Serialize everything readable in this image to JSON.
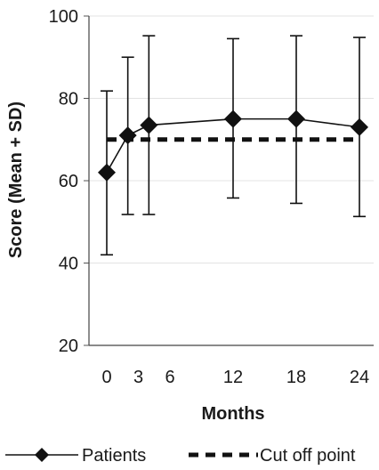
{
  "chart_data": {
    "type": "line",
    "xlabel": "Months",
    "ylabel": "Score (Mean + SD)",
    "x_ticks": [
      "0",
      "3",
      "6",
      "12",
      "18",
      "24"
    ],
    "x_values": [
      0,
      3,
      6,
      12,
      18,
      24
    ],
    "ylim": [
      20,
      100
    ],
    "y_ticks": [
      "20",
      "40",
      "60",
      "80",
      "100"
    ],
    "grid": "horizontal",
    "legend_position": "bottom",
    "series": [
      {
        "name": "Patients",
        "marker": "diamond",
        "color": "#111111",
        "x": [
          0,
          2,
          4,
          12,
          18,
          24
        ],
        "y": [
          62,
          71,
          73.5,
          75,
          75,
          73
        ],
        "error_low": [
          42,
          51.8,
          51.8,
          55.8,
          54.5,
          51.3
        ],
        "error_high": [
          81.8,
          90,
          95.2,
          94.5,
          95.2,
          94.8
        ]
      },
      {
        "name": "Cut off point",
        "style": "dashed",
        "color": "#111111",
        "x": [
          0,
          24
        ],
        "y": [
          70,
          70
        ]
      }
    ]
  }
}
